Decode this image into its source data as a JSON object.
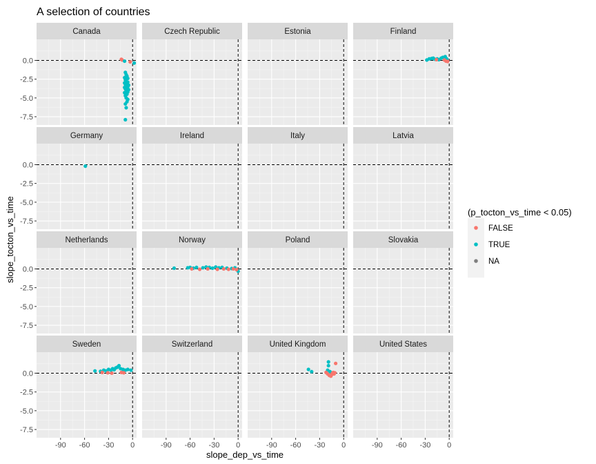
{
  "chart_data": {
    "type": "scatter",
    "title": "A selection of countries",
    "xlabel": "slope_dep_vs_time",
    "ylabel": "slope_tocton_vs_time",
    "xlim": [
      -120,
      5
    ],
    "ylim": [
      -8.6,
      2.8
    ],
    "x_ticks": [
      -90,
      -60,
      -30,
      0
    ],
    "x_tick_labels": [
      "-90",
      "-60",
      "-30",
      "0"
    ],
    "y_ticks": [
      0,
      -2.5,
      -5,
      -7.5
    ],
    "y_tick_labels": [
      "0.0",
      "-2.5",
      "-5.0",
      "-7.5"
    ],
    "reference_lines": {
      "x": 0,
      "y": 0,
      "style": "dashed"
    },
    "legend": {
      "title": "(p_tocton_vs_time < 0.05)",
      "position": "right",
      "entries": [
        {
          "label": "FALSE",
          "color": "#F8766D"
        },
        {
          "label": "TRUE",
          "color": "#00BFC4"
        },
        {
          "label": "NA",
          "color": "#7F7F7F"
        }
      ]
    },
    "panel_layout": {
      "rows": 4,
      "cols": 4
    },
    "panels": [
      {
        "name": "Canada",
        "points": [
          {
            "x": -14,
            "y": 0.15,
            "g": "FALSE"
          },
          {
            "x": -13,
            "y": 0.05,
            "g": "FALSE"
          },
          {
            "x": -3,
            "y": -0.2,
            "g": "FALSE"
          },
          {
            "x": 2,
            "y": -0.35,
            "g": "TRUE"
          },
          {
            "x": -10,
            "y": -0.1,
            "g": "TRUE"
          },
          {
            "x": -9,
            "y": -1.6,
            "g": "TRUE"
          },
          {
            "x": -8,
            "y": -1.9,
            "g": "TRUE"
          },
          {
            "x": -7,
            "y": -2.1,
            "g": "TRUE"
          },
          {
            "x": -10,
            "y": -2.3,
            "g": "TRUE"
          },
          {
            "x": -6,
            "y": -2.4,
            "g": "TRUE"
          },
          {
            "x": -9,
            "y": -2.6,
            "g": "TRUE"
          },
          {
            "x": -8,
            "y": -2.8,
            "g": "TRUE"
          },
          {
            "x": -6,
            "y": -2.9,
            "g": "TRUE"
          },
          {
            "x": -10,
            "y": -3.0,
            "g": "TRUE"
          },
          {
            "x": -7,
            "y": -3.1,
            "g": "TRUE"
          },
          {
            "x": -9,
            "y": -3.2,
            "g": "TRUE"
          },
          {
            "x": -5,
            "y": -3.3,
            "g": "TRUE"
          },
          {
            "x": -8,
            "y": -3.4,
            "g": "TRUE"
          },
          {
            "x": -6,
            "y": -3.5,
            "g": "TRUE"
          },
          {
            "x": -10,
            "y": -3.6,
            "g": "TRUE"
          },
          {
            "x": -7,
            "y": -3.7,
            "g": "TRUE"
          },
          {
            "x": -9,
            "y": -3.8,
            "g": "TRUE"
          },
          {
            "x": -5,
            "y": -3.9,
            "g": "TRUE"
          },
          {
            "x": -8,
            "y": -4.0,
            "g": "TRUE"
          },
          {
            "x": -6,
            "y": -4.2,
            "g": "TRUE"
          },
          {
            "x": -10,
            "y": -4.3,
            "g": "TRUE"
          },
          {
            "x": -7,
            "y": -4.5,
            "g": "TRUE"
          },
          {
            "x": -9,
            "y": -4.7,
            "g": "TRUE"
          },
          {
            "x": -8,
            "y": -5.0,
            "g": "TRUE"
          },
          {
            "x": -6,
            "y": -5.2,
            "g": "TRUE"
          },
          {
            "x": -7,
            "y": -5.5,
            "g": "TRUE"
          },
          {
            "x": -9,
            "y": -5.8,
            "g": "TRUE"
          },
          {
            "x": -8,
            "y": -6.3,
            "g": "TRUE"
          },
          {
            "x": -9,
            "y": -7.9,
            "g": "TRUE"
          }
        ]
      },
      {
        "name": "Czech Republic",
        "points": []
      },
      {
        "name": "Estonia",
        "points": []
      },
      {
        "name": "Finland",
        "points": [
          {
            "x": -28,
            "y": 0.05,
            "g": "TRUE"
          },
          {
            "x": -25,
            "y": 0.2,
            "g": "TRUE"
          },
          {
            "x": -22,
            "y": 0.25,
            "g": "TRUE"
          },
          {
            "x": -20,
            "y": 0.3,
            "g": "TRUE"
          },
          {
            "x": -18,
            "y": 0.15,
            "g": "TRUE"
          },
          {
            "x": -15,
            "y": 0.2,
            "g": "TRUE"
          },
          {
            "x": -13,
            "y": 0.1,
            "g": "TRUE"
          },
          {
            "x": -10,
            "y": 0.3,
            "g": "TRUE"
          },
          {
            "x": -8,
            "y": 0.4,
            "g": "TRUE"
          },
          {
            "x": -5,
            "y": 0.5,
            "g": "TRUE"
          },
          {
            "x": -3,
            "y": 0.2,
            "g": "TRUE"
          },
          {
            "x": -16,
            "y": 0.1,
            "g": "FALSE"
          },
          {
            "x": -6,
            "y": 0.05,
            "g": "FALSE"
          },
          {
            "x": -4,
            "y": -0.1,
            "g": "FALSE"
          },
          {
            "x": -2,
            "y": -0.15,
            "g": "FALSE"
          }
        ]
      },
      {
        "name": "Germany",
        "points": [
          {
            "x": -59,
            "y": -0.2,
            "g": "TRUE"
          }
        ]
      },
      {
        "name": "Ireland",
        "points": []
      },
      {
        "name": "Italy",
        "points": []
      },
      {
        "name": "Latvia",
        "points": []
      },
      {
        "name": "Netherlands",
        "points": []
      },
      {
        "name": "Norway",
        "points": [
          {
            "x": -80,
            "y": 0.1,
            "g": "TRUE"
          },
          {
            "x": -63,
            "y": 0.15,
            "g": "TRUE"
          },
          {
            "x": -60,
            "y": 0.2,
            "g": "TRUE"
          },
          {
            "x": -56,
            "y": 0.1,
            "g": "TRUE"
          },
          {
            "x": -52,
            "y": 0.2,
            "g": "TRUE"
          },
          {
            "x": -44,
            "y": 0.15,
            "g": "TRUE"
          },
          {
            "x": -40,
            "y": 0.25,
            "g": "TRUE"
          },
          {
            "x": -36,
            "y": 0.2,
            "g": "TRUE"
          },
          {
            "x": -32,
            "y": 0.1,
            "g": "TRUE"
          },
          {
            "x": -28,
            "y": 0.25,
            "g": "TRUE"
          },
          {
            "x": -24,
            "y": 0.15,
            "g": "TRUE"
          },
          {
            "x": -20,
            "y": 0.2,
            "g": "TRUE"
          },
          {
            "x": -14,
            "y": 0.1,
            "g": "TRUE"
          },
          {
            "x": -8,
            "y": 0.05,
            "g": "TRUE"
          },
          {
            "x": -4,
            "y": 0.15,
            "g": "TRUE"
          },
          {
            "x": 0,
            "y": -0.3,
            "g": "TRUE"
          },
          {
            "x": -58,
            "y": 0.0,
            "g": "FALSE"
          },
          {
            "x": -48,
            "y": -0.05,
            "g": "FALSE"
          },
          {
            "x": -38,
            "y": 0.0,
            "g": "FALSE"
          },
          {
            "x": -26,
            "y": -0.05,
            "g": "FALSE"
          },
          {
            "x": -18,
            "y": 0.0,
            "g": "FALSE"
          },
          {
            "x": -12,
            "y": -0.05,
            "g": "FALSE"
          },
          {
            "x": -6,
            "y": 0.0,
            "g": "FALSE"
          },
          {
            "x": -2,
            "y": -0.1,
            "g": "FALSE"
          }
        ]
      },
      {
        "name": "Poland",
        "points": []
      },
      {
        "name": "Slovakia",
        "points": []
      },
      {
        "name": "Sweden",
        "points": [
          {
            "x": -47,
            "y": 0.3,
            "g": "TRUE"
          },
          {
            "x": -40,
            "y": 0.25,
            "g": "TRUE"
          },
          {
            "x": -36,
            "y": 0.4,
            "g": "TRUE"
          },
          {
            "x": -33,
            "y": 0.3,
            "g": "TRUE"
          },
          {
            "x": -30,
            "y": 0.5,
            "g": "TRUE"
          },
          {
            "x": -27,
            "y": 0.4,
            "g": "TRUE"
          },
          {
            "x": -25,
            "y": 0.6,
            "g": "TRUE"
          },
          {
            "x": -23,
            "y": 0.45,
            "g": "TRUE"
          },
          {
            "x": -21,
            "y": 0.7,
            "g": "TRUE"
          },
          {
            "x": -19,
            "y": 0.8,
            "g": "TRUE"
          },
          {
            "x": -17,
            "y": 1.0,
            "g": "TRUE"
          },
          {
            "x": -15,
            "y": 0.6,
            "g": "TRUE"
          },
          {
            "x": -12,
            "y": 0.5,
            "g": "TRUE"
          },
          {
            "x": -9,
            "y": 0.4,
            "g": "TRUE"
          },
          {
            "x": -6,
            "y": 0.5,
            "g": "TRUE"
          },
          {
            "x": -2,
            "y": 0.4,
            "g": "TRUE"
          },
          {
            "x": -38,
            "y": 0.1,
            "g": "FALSE"
          },
          {
            "x": -31,
            "y": 0.05,
            "g": "FALSE"
          },
          {
            "x": -26,
            "y": 0.0,
            "g": "FALSE"
          },
          {
            "x": -14,
            "y": 0.1,
            "g": "FALSE"
          },
          {
            "x": -11,
            "y": 0.05,
            "g": "FALSE"
          }
        ]
      },
      {
        "name": "Switzerland",
        "points": []
      },
      {
        "name": "United Kingdom",
        "points": [
          {
            "x": -44,
            "y": 0.5,
            "g": "TRUE"
          },
          {
            "x": -40,
            "y": 0.2,
            "g": "TRUE"
          },
          {
            "x": -19,
            "y": 1.5,
            "g": "TRUE"
          },
          {
            "x": -19,
            "y": 1.0,
            "g": "TRUE"
          },
          {
            "x": -20,
            "y": 0.4,
            "g": "TRUE"
          },
          {
            "x": -17,
            "y": 0.2,
            "g": "TRUE"
          },
          {
            "x": -10,
            "y": 1.3,
            "g": "FALSE"
          },
          {
            "x": -22,
            "y": 0.1,
            "g": "FALSE"
          },
          {
            "x": -20,
            "y": -0.1,
            "g": "FALSE"
          },
          {
            "x": -18,
            "y": -0.3,
            "g": "FALSE"
          },
          {
            "x": -16,
            "y": -0.4,
            "g": "FALSE"
          },
          {
            "x": -15,
            "y": -0.2,
            "g": "FALSE"
          },
          {
            "x": -14,
            "y": 0.0,
            "g": "FALSE"
          },
          {
            "x": -13,
            "y": 0.1,
            "g": "FALSE"
          },
          {
            "x": -12,
            "y": -0.1,
            "g": "FALSE"
          },
          {
            "x": -11,
            "y": 0.05,
            "g": "FALSE"
          }
        ]
      },
      {
        "name": "United States",
        "points": []
      }
    ]
  }
}
